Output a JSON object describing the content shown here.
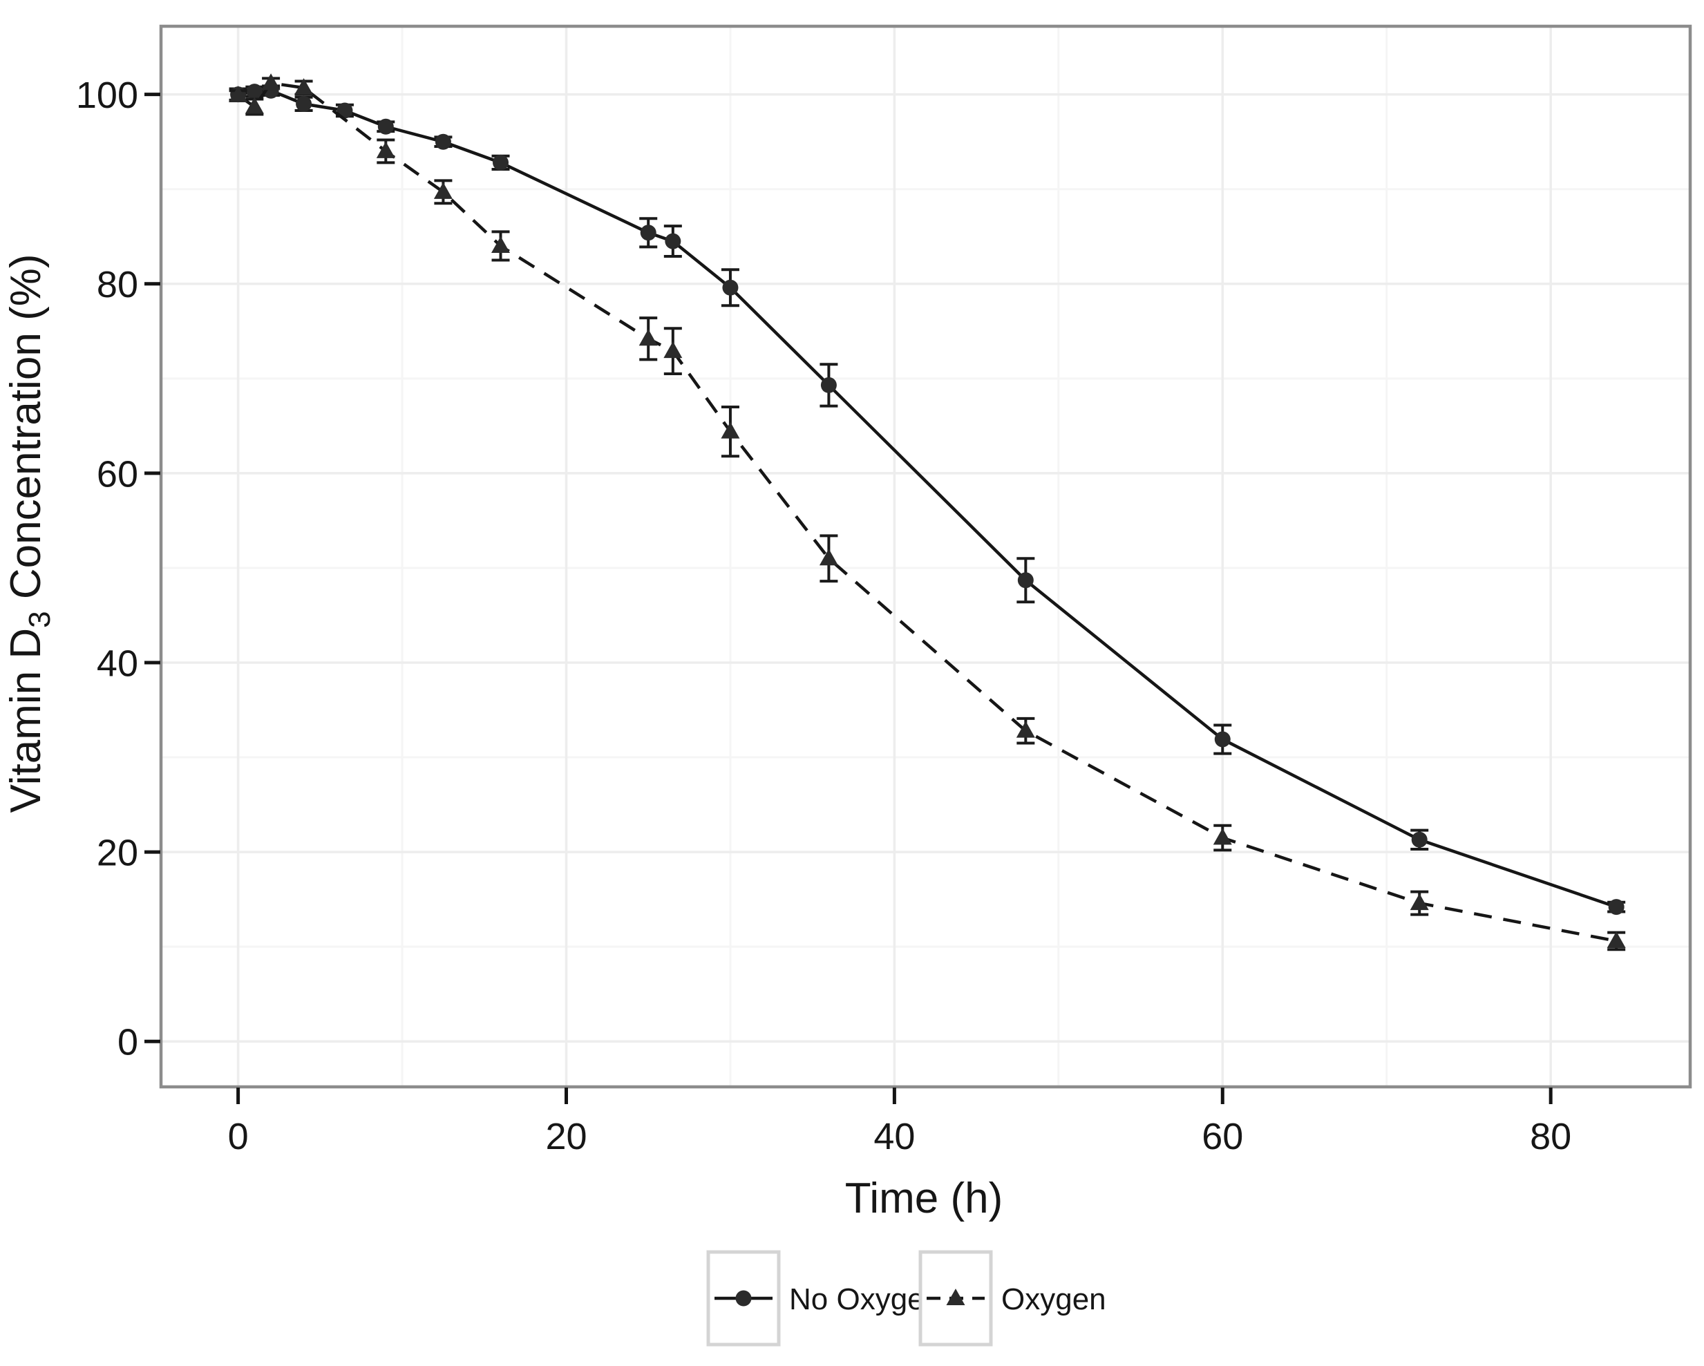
{
  "chart_data": {
    "type": "line",
    "title": "",
    "xlabel": "Time (h)",
    "ylabel": "Vitamin D3 Concentration (%)",
    "ylabel_parts": {
      "pre": "Vitamin D",
      "sub": "3",
      "post": " Concentration (%)"
    },
    "xlim": [
      -4.7,
      88.5
    ],
    "ylim": [
      -4.8,
      107.2
    ],
    "x_ticks": [
      0,
      20,
      40,
      60,
      80
    ],
    "y_ticks": [
      0,
      20,
      40,
      60,
      80,
      100
    ],
    "x_minor_gridlines": [
      10,
      30,
      50,
      70
    ],
    "y_minor_gridlines": [
      10,
      30,
      50,
      70,
      90
    ],
    "grid": true,
    "legend_position": "bottom-center",
    "series": [
      {
        "name": "No Oxygen",
        "marker": "circle",
        "line": "solid",
        "x": [
          0,
          1,
          2,
          4,
          6.5,
          9,
          12.5,
          16,
          25,
          26.5,
          30,
          36,
          48,
          60,
          72,
          84
        ],
        "y": [
          100.0,
          100.3,
          100.4,
          99.0,
          98.3,
          96.6,
          95.0,
          92.8,
          85.4,
          84.5,
          79.6,
          69.3,
          48.7,
          31.9,
          21.3,
          14.2
        ],
        "err": [
          0.6,
          0.5,
          0.5,
          0.7,
          0.6,
          0.5,
          0.5,
          0.7,
          1.5,
          1.6,
          1.9,
          2.2,
          2.3,
          1.5,
          1.0,
          0.5
        ]
      },
      {
        "name": "Oxygen",
        "marker": "triangle",
        "line": "dashed",
        "x": [
          0,
          1,
          2,
          4,
          9,
          12.5,
          16,
          25,
          26.5,
          30,
          36,
          48,
          60,
          72,
          84
        ],
        "y": [
          99.9,
          98.7,
          101.2,
          100.7,
          94.0,
          89.7,
          84.0,
          74.2,
          72.9,
          64.4,
          51.0,
          32.8,
          21.5,
          14.6,
          10.6
        ],
        "err": [
          0.5,
          0.8,
          0.5,
          0.7,
          1.2,
          1.2,
          1.5,
          2.2,
          2.4,
          2.6,
          2.4,
          1.3,
          1.3,
          1.2,
          0.9
        ]
      }
    ],
    "colors": {
      "series_line": "#161616",
      "marker_fill": "#2b2b2b",
      "error_bar": "#1a1a1a",
      "grid_major": "#ededed",
      "grid_minor": "#f5f5f5",
      "panel_border": "#8c8c8c",
      "panel_background": "#ffffff",
      "tick_mark": "#141414",
      "text": "#161616",
      "legend_key_border": "#d4d4d4",
      "legend_key_background": "#ffffff"
    }
  }
}
